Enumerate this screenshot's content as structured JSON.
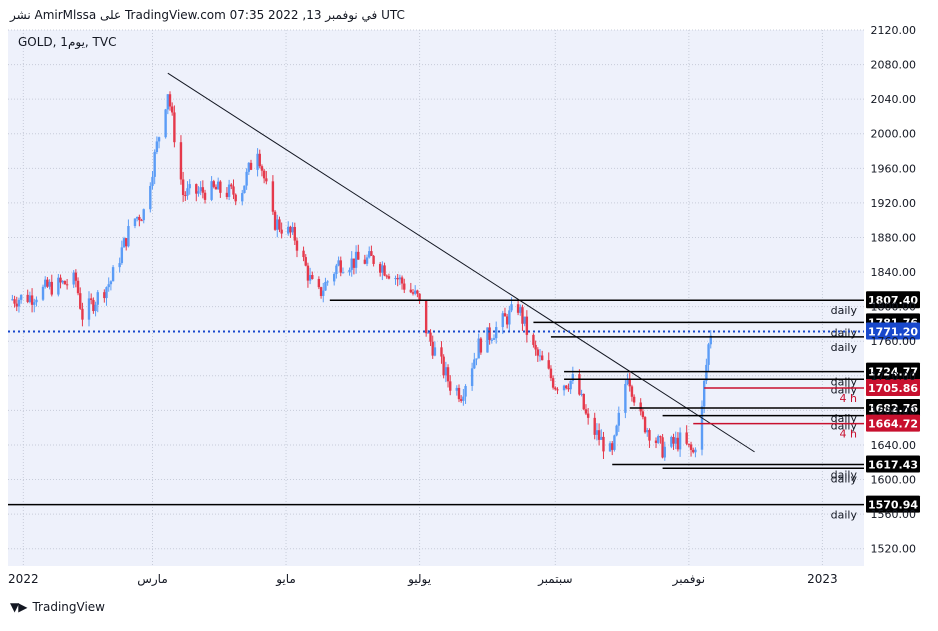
{
  "header": {
    "publish_line": "نشر AmirMlssa على TradingView.com 07:35 2022 ,13 في نوفمبر UTC"
  },
  "symbol_label": "GOLD, 1يوم, TVC",
  "footer": {
    "brand": "TradingView",
    "logo": "tradingview-logo-icon"
  },
  "colors": {
    "up": "#5b9cf6",
    "down": "#e5394b",
    "background": "#eef1fb",
    "grid": "#c7ccd9",
    "price_badge": "#1848cc",
    "red_badge": "#c8102e"
  },
  "chart_data": {
    "type": "candlestick",
    "title": "",
    "symbol": "GOLD, 1يوم, TVC",
    "ylim": [
      1500,
      2120
    ],
    "y_ticks": [
      "2120.00",
      "2080.00",
      "2040.00",
      "2000.00",
      "1960.00",
      "1920.00",
      "1880.00",
      "1840.00",
      "1800.00",
      "1760.00",
      "1720.00",
      "1680.00",
      "1640.00",
      "1600.00",
      "1560.00",
      "1520.00"
    ],
    "x_ticks": [
      {
        "label": "2022",
        "date": "2022-01-01"
      },
      {
        "label": "مارس",
        "date": "2022-03-01"
      },
      {
        "label": "مايو",
        "date": "2022-05-01"
      },
      {
        "label": "يوليو",
        "date": "2022-07-01"
      },
      {
        "label": "سبتمبر",
        "date": "2022-09-01"
      },
      {
        "label": "نوفمبر",
        "date": "2022-11-01"
      },
      {
        "label": "2023",
        "date": "2023-01-01"
      }
    ],
    "x_range": [
      "2021-12-25",
      "2023-01-20"
    ],
    "price_path": [
      {
        "date": "2021-12-25",
        "price": 1808
      },
      {
        "date": "2022-01-05",
        "price": 1812
      },
      {
        "date": "2022-01-12",
        "price": 1822
      },
      {
        "date": "2022-01-25",
        "price": 1830
      },
      {
        "date": "2022-01-28",
        "price": 1790
      },
      {
        "date": "2022-02-10",
        "price": 1830
      },
      {
        "date": "2022-02-20",
        "price": 1900
      },
      {
        "date": "2022-02-25",
        "price": 1910
      },
      {
        "date": "2022-03-08",
        "price": 2050
      },
      {
        "date": "2022-03-15",
        "price": 1930
      },
      {
        "date": "2022-03-30",
        "price": 1935
      },
      {
        "date": "2022-04-10",
        "price": 1930
      },
      {
        "date": "2022-04-18",
        "price": 1985
      },
      {
        "date": "2022-04-25",
        "price": 1900
      },
      {
        "date": "2022-05-05",
        "price": 1880
      },
      {
        "date": "2022-05-15",
        "price": 1810
      },
      {
        "date": "2022-05-25",
        "price": 1850
      },
      {
        "date": "2022-06-10",
        "price": 1855
      },
      {
        "date": "2022-06-20",
        "price": 1835
      },
      {
        "date": "2022-06-30",
        "price": 1810
      },
      {
        "date": "2022-07-05",
        "price": 1765
      },
      {
        "date": "2022-07-15",
        "price": 1710
      },
      {
        "date": "2022-07-20",
        "price": 1700
      },
      {
        "date": "2022-07-28",
        "price": 1755
      },
      {
        "date": "2022-08-05",
        "price": 1775
      },
      {
        "date": "2022-08-15",
        "price": 1800
      },
      {
        "date": "2022-08-22",
        "price": 1750
      },
      {
        "date": "2022-09-01",
        "price": 1710
      },
      {
        "date": "2022-09-10",
        "price": 1715
      },
      {
        "date": "2022-09-16",
        "price": 1665
      },
      {
        "date": "2022-09-27",
        "price": 1628
      },
      {
        "date": "2022-10-04",
        "price": 1725
      },
      {
        "date": "2022-10-10",
        "price": 1670
      },
      {
        "date": "2022-10-20",
        "price": 1635
      },
      {
        "date": "2022-10-28",
        "price": 1645
      },
      {
        "date": "2022-11-03",
        "price": 1630
      },
      {
        "date": "2022-11-07",
        "price": 1680
      },
      {
        "date": "2022-11-08",
        "price": 1710
      },
      {
        "date": "2022-11-10",
        "price": 1755
      },
      {
        "date": "2022-11-11",
        "price": 1771
      }
    ],
    "trendline": {
      "from": {
        "date": "2022-03-08",
        "price": 2070
      },
      "to": {
        "date": "2022-12-01",
        "price": 1632
      }
    },
    "horizontal_levels": [
      {
        "price": 1807.4,
        "label": "1807.40",
        "tag": "daily",
        "start": "2022-05-21",
        "badge": "black"
      },
      {
        "price": 1781.76,
        "label": "1781.76",
        "tag": "daily",
        "start": "2022-08-22",
        "badge": "black"
      },
      {
        "price": 1771.2,
        "label": "1771.20",
        "tag": "",
        "start": "2021-12-25",
        "badge": "blue",
        "dotted": true
      },
      {
        "price": 1765,
        "label": "",
        "tag": "daily",
        "start": "2022-08-30",
        "badge": "black"
      },
      {
        "price": 1724.77,
        "label": "1724.77",
        "tag": "daily",
        "start": "2022-09-05",
        "badge": "black"
      },
      {
        "price": 1716,
        "label": "",
        "tag": "daily",
        "start": "2022-09-05",
        "badge": "none"
      },
      {
        "price": 1705.86,
        "label": "1705.86",
        "tag": "4 h",
        "start": "2022-11-08",
        "badge": "red"
      },
      {
        "price": 1682.76,
        "label": "1682.76",
        "tag": "daily",
        "start": "2022-10-05",
        "badge": "black"
      },
      {
        "price": 1674,
        "label": "",
        "tag": "daily",
        "start": "2022-10-20",
        "badge": "black"
      },
      {
        "price": 1664.72,
        "label": "1664.72",
        "tag": "4 h",
        "start": "2022-11-03",
        "badge": "red"
      },
      {
        "price": 1617.43,
        "label": "1617.43",
        "tag": "daily",
        "start": "2022-09-27",
        "badge": "black"
      },
      {
        "price": 1613,
        "label": "",
        "tag": "daily",
        "start": "2022-10-20",
        "badge": "black"
      },
      {
        "price": 1570.94,
        "label": "1570.94",
        "tag": "daily",
        "start": "2021-12-25",
        "badge": "black"
      }
    ],
    "current_price": "1771.20",
    "grid": true
  }
}
